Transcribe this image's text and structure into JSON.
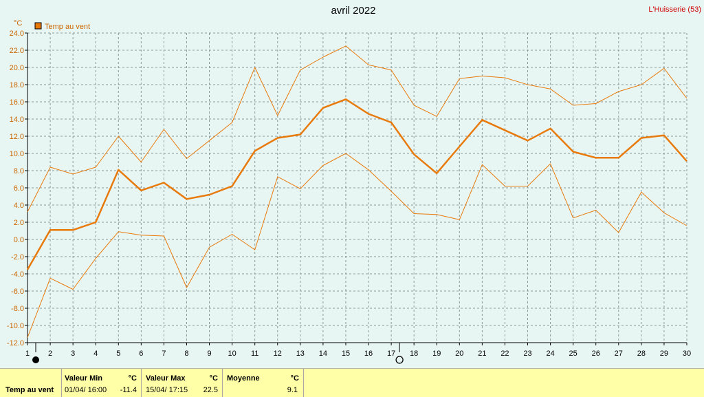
{
  "title": "avril 2022",
  "station": "L'Huisserie (53)",
  "unit": "°C",
  "colors": {
    "series": "#e87a0c",
    "grid": "#8a9a98",
    "background": "#e8f6f3",
    "summary_bg": "#ffffa8",
    "station": "#cc0000"
  },
  "chart_data": {
    "type": "line",
    "title": "avril 2022",
    "ylabel": "°C",
    "ylim": [
      -12,
      24
    ],
    "yticks": [
      "24.0",
      "22.0",
      "20.0",
      "18.0",
      "16.0",
      "14.0",
      "12.0",
      "10.0",
      "8.0",
      "6.0",
      "4.0",
      "2.0",
      "0.0",
      "-2.0",
      "-4.0",
      "-6.0",
      "-8.0",
      "-10.0",
      "-12.0"
    ],
    "x": [
      1,
      2,
      3,
      4,
      5,
      6,
      7,
      8,
      9,
      10,
      11,
      12,
      13,
      14,
      15,
      16,
      17,
      18,
      19,
      20,
      21,
      22,
      23,
      24,
      25,
      26,
      27,
      28,
      29,
      30
    ],
    "legend": [
      "Temp au vent"
    ],
    "legend_position": "top-left",
    "grid": true,
    "series": [
      {
        "name": "Temp au vent",
        "role": "max",
        "values": [
          3.2,
          8.4,
          7.6,
          8.4,
          12.0,
          9.0,
          12.8,
          9.4,
          11.5,
          13.6,
          20.0,
          14.4,
          19.7,
          21.2,
          22.5,
          20.3,
          19.7,
          15.6,
          14.3,
          18.7,
          19.0,
          18.8,
          18.0,
          17.5,
          15.6,
          15.8,
          17.2,
          18.0,
          19.9,
          16.4
        ]
      },
      {
        "name": "Temp au vent",
        "role": "mean",
        "values": [
          -3.5,
          1.1,
          1.1,
          2.0,
          8.1,
          5.7,
          6.6,
          4.7,
          5.2,
          6.2,
          10.3,
          11.8,
          12.2,
          15.3,
          16.3,
          14.6,
          13.6,
          9.9,
          7.7,
          10.8,
          13.9,
          12.7,
          11.5,
          12.9,
          10.2,
          9.5,
          9.5,
          11.8,
          12.1,
          9.1
        ]
      },
      {
        "name": "Temp au vent",
        "role": "min",
        "values": [
          -11.4,
          -4.5,
          -5.8,
          -2.2,
          0.9,
          0.5,
          0.4,
          -5.6,
          -0.9,
          0.6,
          -1.2,
          7.3,
          5.9,
          8.6,
          10.0,
          8.1,
          5.6,
          3.0,
          2.9,
          2.3,
          8.7,
          6.2,
          6.2,
          8.8,
          2.5,
          3.4,
          0.8,
          5.5,
          3.1,
          1.6
        ]
      }
    ],
    "markers": [
      {
        "day": 1,
        "symbol": "filled-circle"
      },
      {
        "day": 17,
        "symbol": "hollow-circle"
      }
    ]
  },
  "summary": {
    "row_label": "Temp au vent",
    "min_label": "Valeur Min",
    "min_unit": "°C",
    "min_date": "01/04/  16:00",
    "min_value": "-11.4",
    "max_label": "Valeur Max",
    "max_unit": "°C",
    "max_date": "15/04/  17:15",
    "max_value": "22.5",
    "mean_label": "Moyenne",
    "mean_unit": "°C",
    "mean_value": "9.1"
  }
}
